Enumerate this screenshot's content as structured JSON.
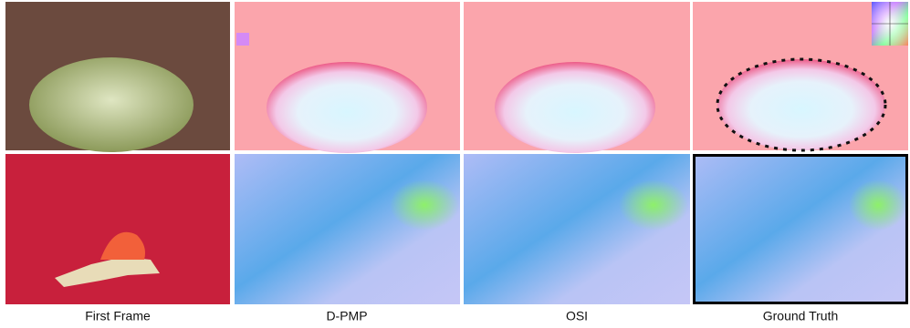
{
  "columns": [
    {
      "label": "First Frame"
    },
    {
      "label": "D-PMP"
    },
    {
      "label": "OSI"
    },
    {
      "label": "Ground Truth"
    }
  ]
}
